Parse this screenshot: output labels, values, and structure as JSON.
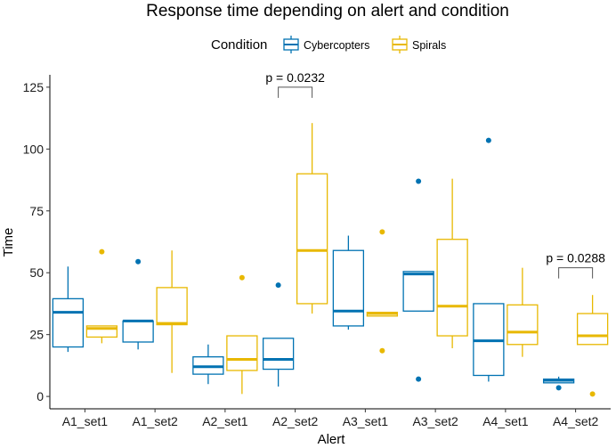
{
  "chart_data": {
    "type": "boxplot",
    "title": "Response time depending on alert and condition",
    "xlabel": "Alert",
    "ylabel": "Time",
    "ylim": [
      -5,
      130
    ],
    "yticks": [
      0,
      25,
      50,
      75,
      100,
      125
    ],
    "categories": [
      "A1_set1",
      "A1_set2",
      "A2_set1",
      "A2_set2",
      "A3_set1",
      "A3_set2",
      "A4_set1",
      "A4_set2"
    ],
    "legend": {
      "title": "Condition",
      "position": "top"
    },
    "series": [
      {
        "name": "Cybercopters",
        "color": "#0072B2",
        "boxes": [
          {
            "min": 18,
            "q1": 20,
            "median": 34,
            "q3": 39.5,
            "max": 52.5,
            "outliers": []
          },
          {
            "min": 19,
            "q1": 22,
            "median": 30.5,
            "q3": 30.5,
            "max": 30.5,
            "outliers": [
              54.5
            ]
          },
          {
            "min": 5,
            "q1": 9,
            "median": 12,
            "q3": 16,
            "max": 21,
            "outliers": []
          },
          {
            "min": 4,
            "q1": 11,
            "median": 15,
            "q3": 23.5,
            "max": 23.5,
            "outliers": [
              45
            ]
          },
          {
            "min": 27,
            "q1": 28.5,
            "median": 34.5,
            "q3": 59,
            "max": 65,
            "outliers": []
          },
          {
            "min": 34.5,
            "q1": 34.5,
            "median": 49.5,
            "q3": 50.5,
            "max": 50.5,
            "outliers": [
              87,
              7
            ]
          },
          {
            "min": 6,
            "q1": 8.5,
            "median": 22.5,
            "q3": 37.5,
            "max": 37.5,
            "outliers": [
              103.5
            ]
          },
          {
            "min": 5.5,
            "q1": 5.5,
            "median": 6.5,
            "q3": 7,
            "max": 8,
            "outliers": [
              3.5
            ]
          }
        ]
      },
      {
        "name": "Spirals",
        "color": "#E8B800",
        "boxes": [
          {
            "min": 21.5,
            "q1": 24,
            "median": 27.5,
            "q3": 28.5,
            "max": 28.5,
            "outliers": [
              58.5
            ]
          },
          {
            "min": 9.5,
            "q1": 29,
            "median": 29.5,
            "q3": 44,
            "max": 59,
            "outliers": []
          },
          {
            "min": 1,
            "q1": 10.5,
            "median": 15,
            "q3": 24.5,
            "max": 24.5,
            "outliers": [
              48
            ]
          },
          {
            "min": 33.5,
            "q1": 37.5,
            "median": 59,
            "q3": 90,
            "max": 110.5,
            "outliers": []
          },
          {
            "min": 32.5,
            "q1": 32.5,
            "median": 33.5,
            "q3": 34,
            "max": 34,
            "outliers": [
              66.5,
              18.5
            ]
          },
          {
            "min": 19.5,
            "q1": 24.5,
            "median": 36.5,
            "q3": 63.5,
            "max": 88,
            "outliers": []
          },
          {
            "min": 16,
            "q1": 21,
            "median": 26,
            "q3": 37,
            "max": 52,
            "outliers": []
          },
          {
            "min": 21,
            "q1": 21,
            "median": 24.5,
            "q3": 33.5,
            "max": 41,
            "outliers": [
              1
            ]
          }
        ]
      }
    ],
    "annotations": [
      {
        "label": "p = 0.0232",
        "category": "A2_set2",
        "y": 125
      },
      {
        "label": "p = 0.0288",
        "category": "A4_set2",
        "y": 52
      }
    ]
  }
}
